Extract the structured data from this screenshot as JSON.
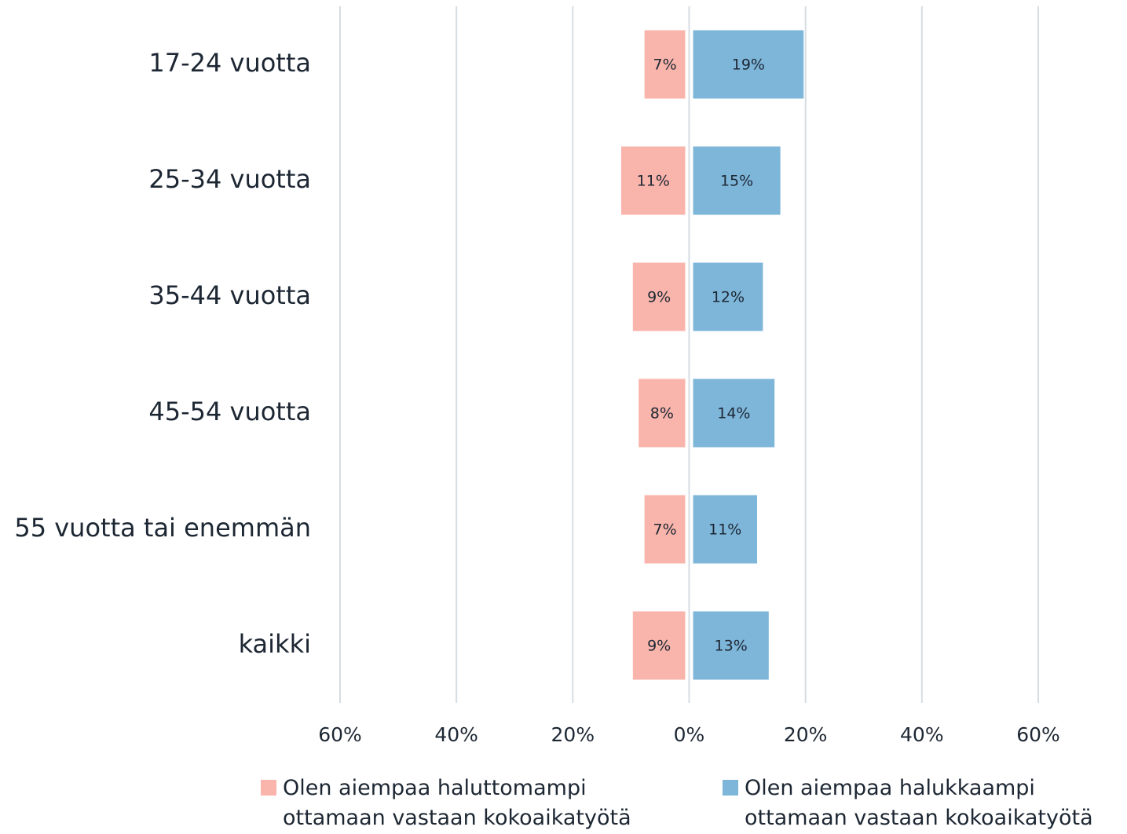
{
  "chart_data": {
    "type": "diverging_bar",
    "categories": [
      "17-24 vuotta",
      "25-34 vuotta",
      "35-44 vuotta",
      "45-54 vuotta",
      "55 vuotta tai enemmän",
      "kaikki"
    ],
    "series": [
      {
        "name": "Olen aiempaa haluttomampi ottamaan vastaan kokoaikatyötä",
        "color": "#f9b4ab",
        "values": [
          -7,
          -11,
          -9,
          -8,
          -7,
          -9
        ],
        "value_labels": [
          "7%",
          "11%",
          "9%",
          "8%",
          "7%",
          "9%"
        ]
      },
      {
        "name": "Olen aiempaa halukkaampi ottamaan vastaan kokoaikatyötä",
        "color": "#7eb6da",
        "values": [
          19,
          15,
          12,
          14,
          11,
          13
        ],
        "value_labels": [
          "19%",
          "15%",
          "12%",
          "14%",
          "11%",
          "13%"
        ]
      }
    ],
    "xlim": [
      -60,
      60
    ],
    "xticks": [
      {
        "value": -60,
        "label": "60%"
      },
      {
        "value": -40,
        "label": "40%"
      },
      {
        "value": -20,
        "label": "20%"
      },
      {
        "value": 0,
        "label": "0%"
      },
      {
        "value": 20,
        "label": "20%"
      },
      {
        "value": 40,
        "label": "40%"
      },
      {
        "value": 60,
        "label": "60%"
      }
    ],
    "grid": true,
    "legend": "bottom"
  }
}
